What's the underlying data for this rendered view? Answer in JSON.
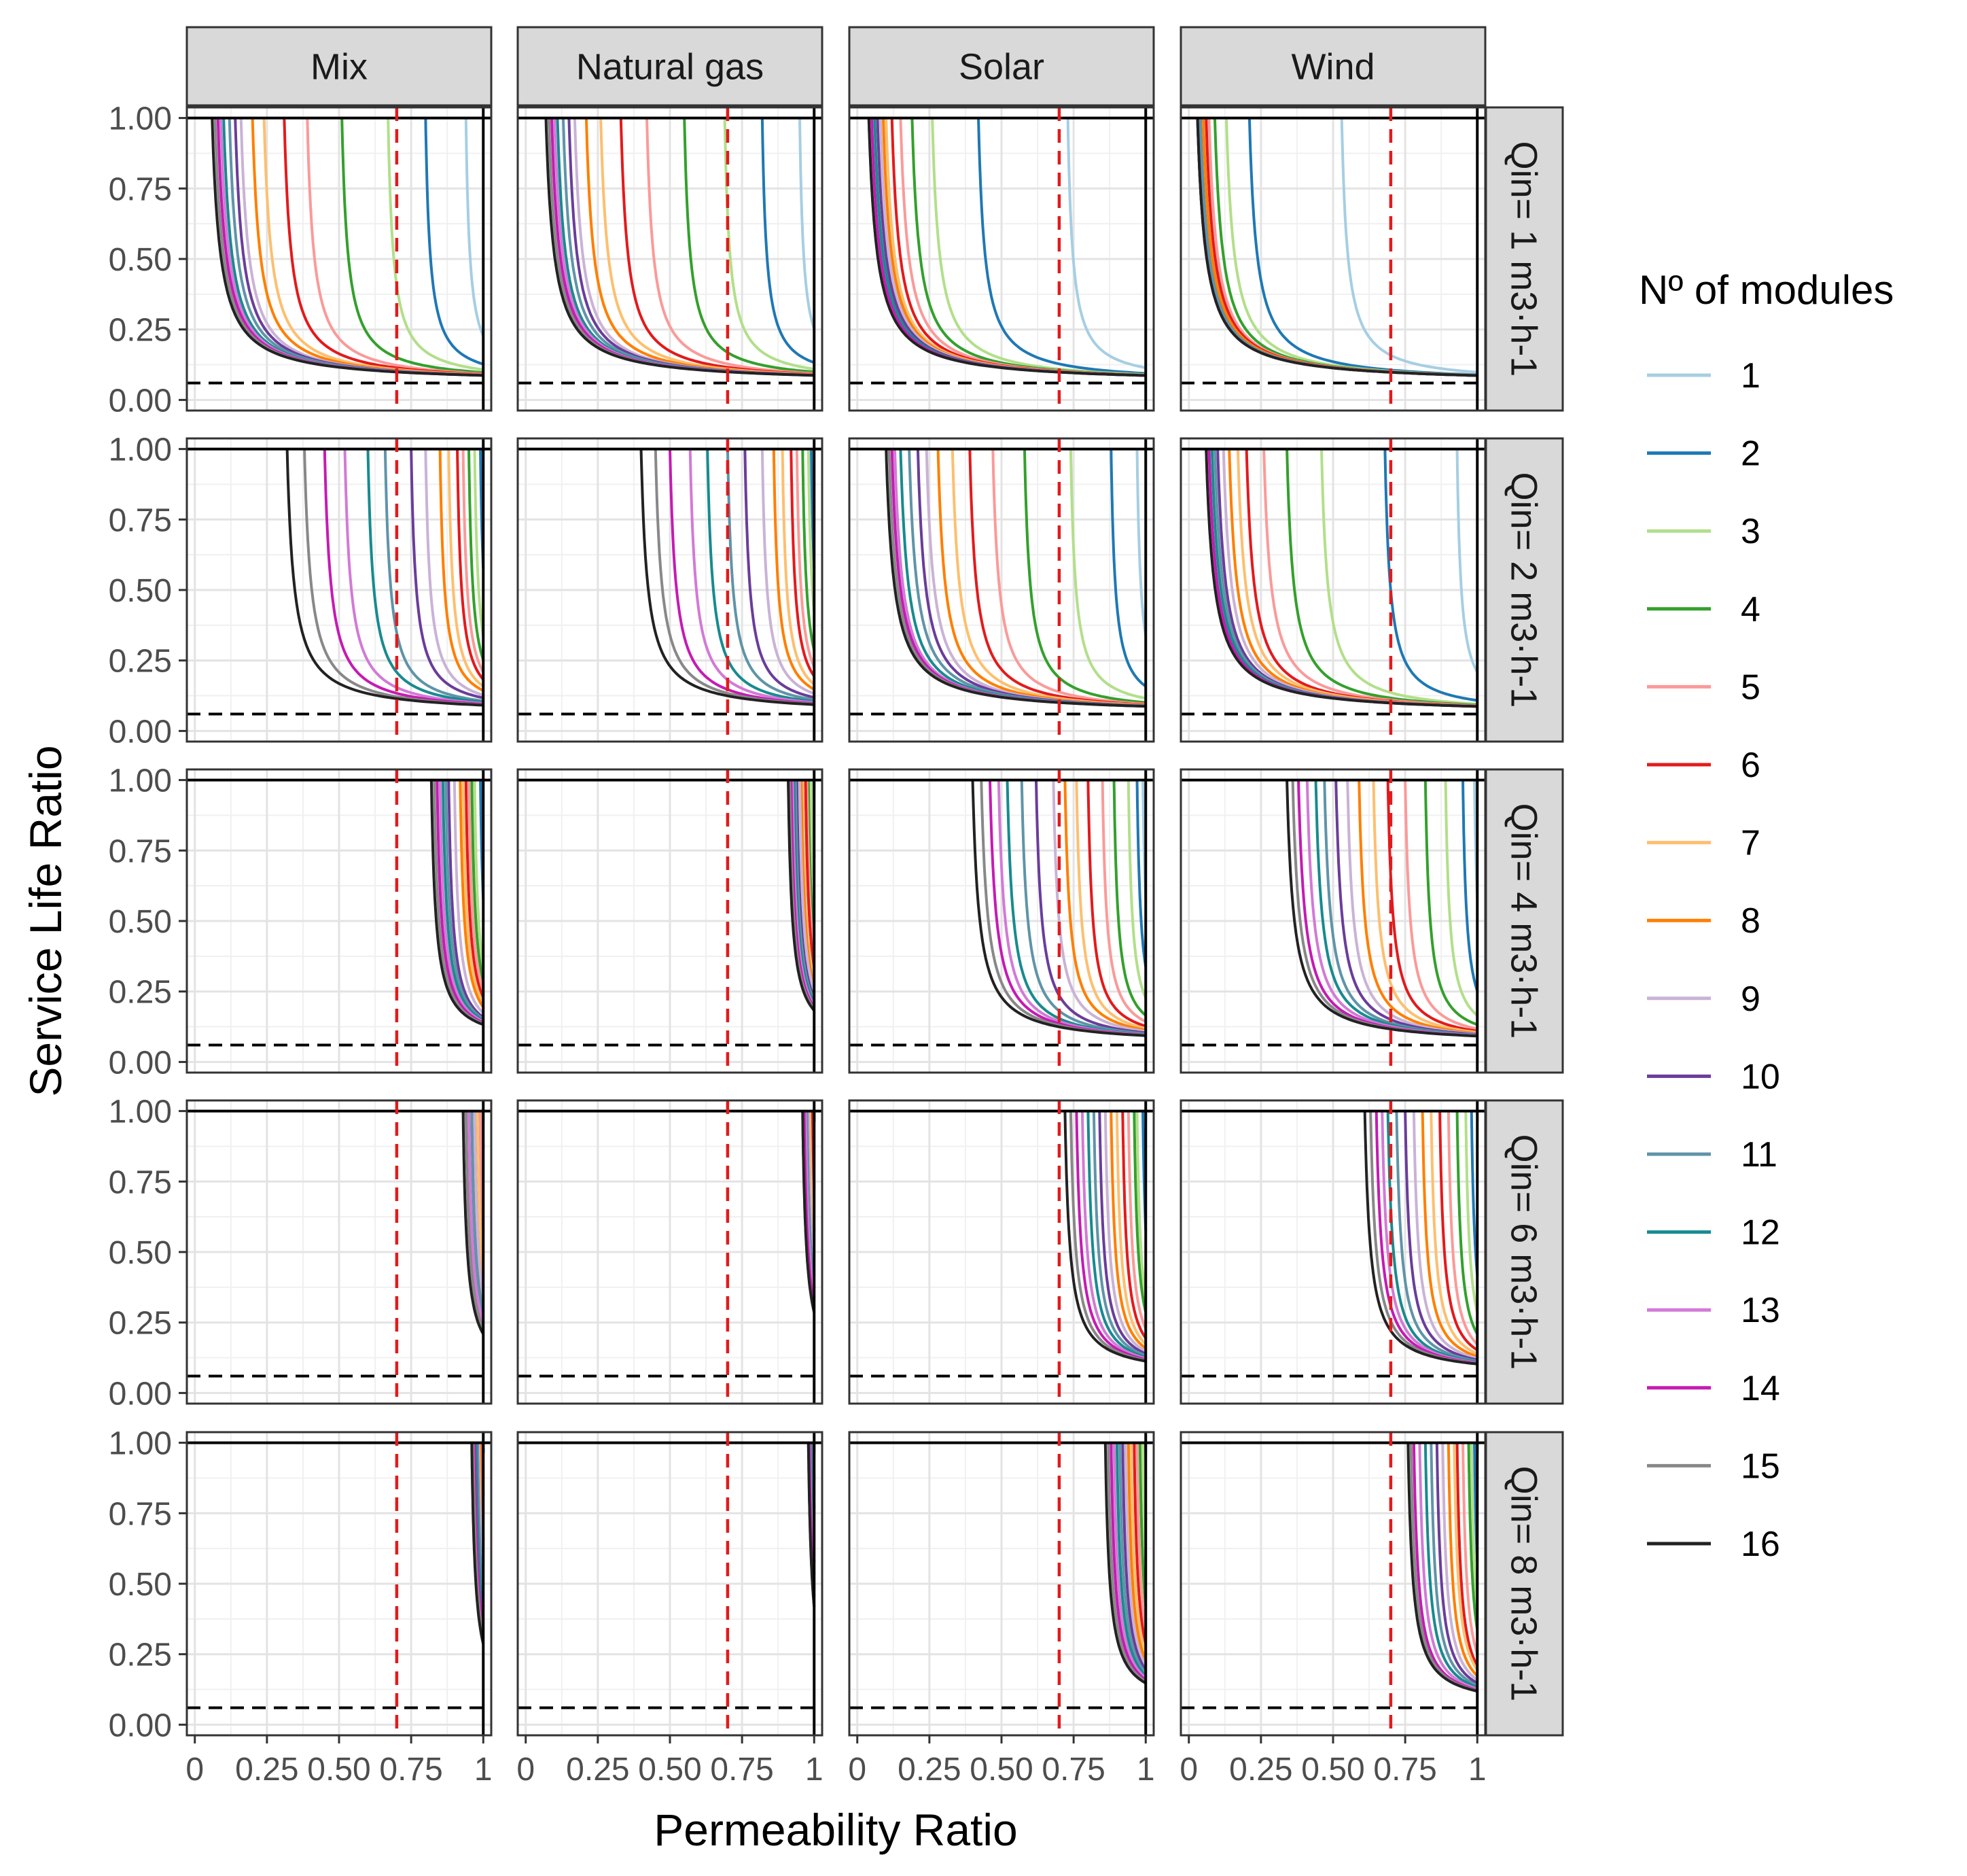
{
  "chart_data": {
    "type": "line",
    "title": "",
    "xlabel": "Permeability Ratio",
    "ylabel": "Service Life Ratio",
    "xlim": [
      0,
      1
    ],
    "ylim": [
      0,
      1
    ],
    "x_tick_labels": [
      "0",
      "0.25",
      "0.50",
      "0.75",
      "1"
    ],
    "x_ticks": [
      0,
      0.25,
      0.5,
      0.75,
      1
    ],
    "y_tick_labels": [
      "0.00",
      "0.25",
      "0.50",
      "0.75",
      "1.00"
    ],
    "y_ticks": [
      0,
      0.25,
      0.5,
      0.75,
      1
    ],
    "columns": [
      "Mix",
      "Natural gas",
      "Solar",
      "Wind"
    ],
    "rows": [
      "Qin= 1 m3·h-1",
      "Qin= 2 m3·h-1",
      "Qin= 4 m3·h-1",
      "Qin= 6 m3·h-1",
      "Qin= 8 m3·h-1"
    ],
    "reference_lines": {
      "vertical_red_dashed_x": 0.7,
      "horizontal_black_dashed_y": 0.06,
      "horizontal_solid_y": 1.0,
      "vertical_solid_x": 1.0
    },
    "legend": {
      "title": "Nº of modules",
      "entries": [
        "1",
        "2",
        "3",
        "4",
        "5",
        "6",
        "7",
        "8",
        "9",
        "10",
        "11",
        "12",
        "13",
        "14",
        "15",
        "16"
      ],
      "colors": [
        "#a6cee3",
        "#1f78b4",
        "#b2df8a",
        "#33a02c",
        "#fb9a99",
        "#e31a1c",
        "#fdbf6f",
        "#ff7f00",
        "#cab2d6",
        "#6a3d9a",
        "#5f94a8",
        "#178b8f",
        "#d27ad6",
        "#c51bb3",
        "#888888",
        "#222222"
      ],
      "position": "right"
    },
    "asymptote_x_by_modules": {
      "Mix": [
        [
          0.94,
          0.8,
          0.67,
          0.51,
          0.39,
          0.31,
          0.24,
          0.2,
          0.16,
          0.14,
          0.12,
          0.1,
          0.09,
          0.08,
          0.07,
          0.06
        ],
        [
          0.997,
          0.99,
          0.97,
          0.95,
          0.93,
          0.91,
          0.88,
          0.85,
          0.8,
          0.75,
          0.66,
          0.6,
          0.52,
          0.45,
          0.38,
          0.32
        ],
        [
          0.999,
          0.99,
          0.97,
          0.96,
          0.95,
          0.94,
          0.93,
          0.92,
          0.9,
          0.88,
          0.87,
          0.86,
          0.85,
          0.84,
          0.83,
          0.82
        ],
        [
          1.0,
          0.998,
          0.995,
          0.99,
          0.99,
          0.98,
          0.98,
          0.97,
          0.97,
          0.96,
          0.96,
          0.95,
          0.95,
          0.94,
          0.94,
          0.93
        ],
        [
          1.0,
          1.0,
          0.998,
          0.997,
          0.995,
          0.993,
          0.99,
          0.99,
          0.985,
          0.98,
          0.98,
          0.975,
          0.97,
          0.97,
          0.965,
          0.96
        ]
      ],
      "Natural gas": [
        [
          0.95,
          0.82,
          0.69,
          0.55,
          0.42,
          0.33,
          0.26,
          0.21,
          0.17,
          0.15,
          0.13,
          0.11,
          0.1,
          0.09,
          0.08,
          0.07
        ],
        [
          0.998,
          0.99,
          0.98,
          0.96,
          0.94,
          0.92,
          0.89,
          0.86,
          0.82,
          0.76,
          0.7,
          0.63,
          0.57,
          0.5,
          0.45,
          0.4
        ],
        [
          1.0,
          0.995,
          0.99,
          0.98,
          0.975,
          0.97,
          0.96,
          0.955,
          0.95,
          0.94,
          0.935,
          0.93,
          0.925,
          0.92,
          0.915,
          0.91
        ],
        [
          1.0,
          1.0,
          0.998,
          0.995,
          0.99,
          0.99,
          0.985,
          0.98,
          0.98,
          0.975,
          0.975,
          0.97,
          0.97,
          0.965,
          0.96,
          0.96
        ],
        [
          1.0,
          1.0,
          1.0,
          0.998,
          0.997,
          0.996,
          0.995,
          0.993,
          0.99,
          0.99,
          0.99,
          0.988,
          0.985,
          0.983,
          0.98,
          0.98
        ]
      ],
      "Solar": [
        [
          0.73,
          0.42,
          0.26,
          0.19,
          0.15,
          0.12,
          0.1,
          0.09,
          0.08,
          0.07,
          0.06,
          0.06,
          0.05,
          0.05,
          0.04,
          0.04
        ],
        [
          0.97,
          0.88,
          0.74,
          0.58,
          0.47,
          0.39,
          0.33,
          0.28,
          0.24,
          0.21,
          0.18,
          0.15,
          0.13,
          0.12,
          0.11,
          0.1
        ],
        [
          0.99,
          0.97,
          0.94,
          0.89,
          0.85,
          0.8,
          0.76,
          0.72,
          0.68,
          0.62,
          0.57,
          0.52,
          0.49,
          0.46,
          0.43,
          0.4
        ],
        [
          1.0,
          0.99,
          0.97,
          0.96,
          0.94,
          0.92,
          0.9,
          0.88,
          0.86,
          0.84,
          0.82,
          0.8,
          0.78,
          0.76,
          0.74,
          0.72
        ],
        [
          1.0,
          0.995,
          0.99,
          0.98,
          0.97,
          0.96,
          0.95,
          0.94,
          0.93,
          0.92,
          0.91,
          0.9,
          0.89,
          0.88,
          0.87,
          0.86
        ]
      ],
      "Wind": [
        [
          0.53,
          0.21,
          0.13,
          0.09,
          0.07,
          0.06,
          0.05,
          0.05,
          0.04,
          0.04,
          0.04,
          0.03,
          0.03,
          0.03,
          0.03,
          0.03
        ],
        [
          0.93,
          0.68,
          0.46,
          0.34,
          0.26,
          0.2,
          0.17,
          0.14,
          0.12,
          0.1,
          0.09,
          0.08,
          0.07,
          0.07,
          0.06,
          0.06
        ],
        [
          0.99,
          0.95,
          0.89,
          0.82,
          0.75,
          0.69,
          0.64,
          0.59,
          0.55,
          0.51,
          0.47,
          0.44,
          0.41,
          0.38,
          0.36,
          0.34
        ],
        [
          1.0,
          0.98,
          0.96,
          0.93,
          0.9,
          0.87,
          0.84,
          0.81,
          0.78,
          0.75,
          0.72,
          0.69,
          0.67,
          0.65,
          0.63,
          0.61
        ],
        [
          1.0,
          0.99,
          0.98,
          0.97,
          0.95,
          0.93,
          0.92,
          0.9,
          0.88,
          0.86,
          0.84,
          0.82,
          0.8,
          0.78,
          0.77,
          0.76
        ]
      ]
    },
    "curve_floor_y": 0.06
  }
}
